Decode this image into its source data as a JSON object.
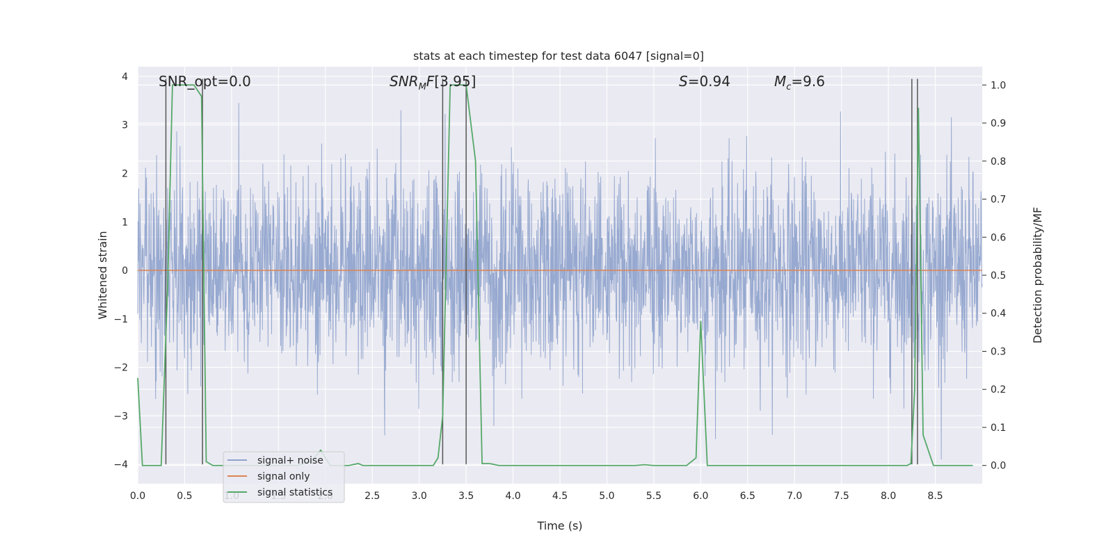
{
  "chart_data": {
    "type": "line",
    "title": "stats at each timestep for test data 6047 [signal=0]",
    "xlabel": "Time (s)",
    "ylabel": "Whitened strain",
    "y2label": "Detection probability/MF",
    "xlim": [
      0.0,
      9.0
    ],
    "ylim": [
      -4.4,
      4.2
    ],
    "y2lim": [
      -0.048,
      1.048
    ],
    "xticks": [
      "0.0",
      "0.5",
      "1.0",
      "1.5",
      "2.0",
      "2.5",
      "3.0",
      "3.5",
      "4.0",
      "4.5",
      "5.0",
      "5.5",
      "6.0",
      "6.5",
      "7.0",
      "7.5",
      "8.0",
      "8.5"
    ],
    "yticks": [
      "−4",
      "−3",
      "−2",
      "−1",
      "0",
      "1",
      "2",
      "3",
      "4"
    ],
    "y2ticks": [
      "0.0",
      "0.1",
      "0.2",
      "0.3",
      "0.4",
      "0.5",
      "0.6",
      "0.7",
      "0.8",
      "0.9",
      "1.0"
    ],
    "annotations": {
      "snr_opt": "SNR_opt=0.0",
      "snr_mf": "[3.95]",
      "s": "=0.94",
      "mc": "=9.6"
    },
    "legend": {
      "position": "lower-left",
      "entries": [
        "signal+ noise",
        "signal only",
        "signal statistics"
      ]
    },
    "colors": {
      "noise": "#8ea2cc",
      "signal": "#dd8452",
      "stats": "#55a868",
      "vlines": "#555555",
      "plot_bg": "#eaeaf2"
    },
    "series": [
      {
        "name": "signal+ noise",
        "description": "dense whitened strain noise, ~N(0,1) with max excursions about ±3.9",
        "sigma": 1.0
      },
      {
        "name": "signal only",
        "x": [
          0.0,
          9.0
        ],
        "y": [
          0.0,
          0.0
        ]
      },
      {
        "name": "signal statistics",
        "axis": "right",
        "x": [
          0.0,
          0.05,
          0.25,
          0.32,
          0.37,
          0.45,
          0.55,
          0.6,
          0.68,
          0.73,
          0.8,
          1.7,
          1.85,
          1.95,
          2.05,
          2.25,
          2.35,
          2.4,
          3.15,
          3.2,
          3.25,
          3.33,
          3.5,
          3.6,
          3.67,
          3.75,
          3.85,
          5.3,
          5.4,
          5.5,
          5.85,
          5.95,
          6.0,
          6.07,
          8.2,
          8.24,
          8.28,
          8.32,
          8.37,
          8.48,
          8.9
        ],
        "y": [
          0.23,
          0.0,
          0.0,
          0.48,
          1.0,
          1.0,
          1.0,
          1.0,
          0.97,
          0.01,
          0.0,
          0.0,
          0.01,
          0.04,
          0.0,
          0.0,
          0.005,
          0.0,
          0.0,
          0.02,
          0.13,
          1.0,
          1.0,
          0.8,
          0.005,
          0.005,
          0.0,
          0.0,
          0.002,
          0.0,
          0.0,
          0.02,
          0.38,
          0.0,
          0.0,
          0.005,
          0.2,
          0.94,
          0.08,
          0.0,
          0.0
        ]
      }
    ],
    "vertical_lines": [
      {
        "x": 0.3,
        "y_range": [
          -4.0,
          3.95
        ]
      },
      {
        "x": 0.69,
        "y_range": [
          -4.0,
          3.95
        ]
      },
      {
        "x": 3.25,
        "y_range": [
          -4.0,
          3.95
        ]
      },
      {
        "x": 3.5,
        "y_range": [
          -4.0,
          3.95
        ]
      },
      {
        "x": 8.25,
        "y_range": [
          -4.0,
          3.95
        ]
      },
      {
        "x": 8.31,
        "y_range": [
          -4.0,
          3.95
        ]
      }
    ]
  }
}
